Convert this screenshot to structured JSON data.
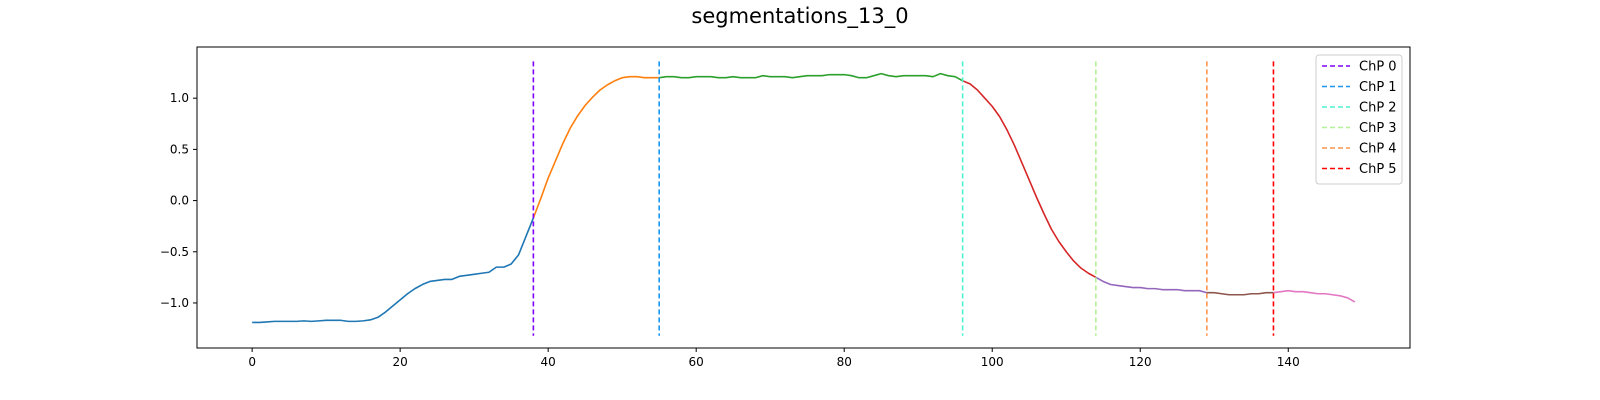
{
  "chart_data": {
    "type": "line",
    "title": "segmentations_13_0",
    "xlabel": "",
    "ylabel": "",
    "xlim": [
      -7.45,
      156.45
    ],
    "ylim": [
      -1.44,
      1.5
    ],
    "x_ticks": [
      0,
      20,
      40,
      60,
      80,
      100,
      120,
      140
    ],
    "y_ticks": [
      -1.0,
      -0.5,
      0.0,
      0.5,
      1.0
    ],
    "x_tick_labels": [
      "0",
      "20",
      "40",
      "60",
      "80",
      "100",
      "120",
      "140"
    ],
    "y_tick_labels": [
      "−1.0",
      "−0.5",
      "0.0",
      "0.5",
      "1.0"
    ],
    "grid": false,
    "legend_position": "top-right",
    "segment_colors": [
      "#1f77b4",
      "#ff7f0e",
      "#2ca02c",
      "#d62728",
      "#9467bd",
      "#8c564b",
      "#e377c2"
    ],
    "segment_bounds": [
      0,
      38,
      55,
      96,
      114,
      129,
      138,
      149
    ],
    "y": [
      -1.19,
      -1.19,
      -1.185,
      -1.18,
      -1.18,
      -1.18,
      -1.18,
      -1.175,
      -1.18,
      -1.175,
      -1.17,
      -1.17,
      -1.17,
      -1.18,
      -1.18,
      -1.175,
      -1.165,
      -1.14,
      -1.09,
      -1.03,
      -0.97,
      -0.91,
      -0.86,
      -0.82,
      -0.79,
      -0.78,
      -0.77,
      -0.77,
      -0.74,
      -0.73,
      -0.72,
      -0.71,
      -0.7,
      -0.65,
      -0.65,
      -0.62,
      -0.53,
      -0.35,
      -0.17,
      0.02,
      0.22,
      0.39,
      0.56,
      0.71,
      0.83,
      0.93,
      1.01,
      1.08,
      1.13,
      1.17,
      1.2,
      1.21,
      1.21,
      1.2,
      1.2,
      1.2,
      1.21,
      1.21,
      1.2,
      1.2,
      1.21,
      1.21,
      1.21,
      1.2,
      1.2,
      1.21,
      1.2,
      1.2,
      1.2,
      1.22,
      1.21,
      1.21,
      1.21,
      1.2,
      1.21,
      1.22,
      1.22,
      1.22,
      1.23,
      1.23,
      1.23,
      1.22,
      1.2,
      1.2,
      1.22,
      1.24,
      1.22,
      1.21,
      1.22,
      1.22,
      1.22,
      1.22,
      1.21,
      1.24,
      1.22,
      1.21,
      1.17,
      1.14,
      1.08,
      1.0,
      0.92,
      0.82,
      0.69,
      0.54,
      0.37,
      0.2,
      0.03,
      -0.13,
      -0.28,
      -0.4,
      -0.5,
      -0.59,
      -0.66,
      -0.71,
      -0.75,
      -0.79,
      -0.82,
      -0.83,
      -0.84,
      -0.85,
      -0.85,
      -0.86,
      -0.86,
      -0.87,
      -0.87,
      -0.87,
      -0.88,
      -0.88,
      -0.88,
      -0.9,
      -0.9,
      -0.91,
      -0.92,
      -0.92,
      -0.92,
      -0.91,
      -0.91,
      -0.9,
      -0.9,
      -0.89,
      -0.88,
      -0.89,
      -0.89,
      -0.9,
      -0.91,
      -0.91,
      -0.92,
      -0.93,
      -0.95,
      -0.99,
      -1.04
    ],
    "changepoints": [
      {
        "name": "ChP 0",
        "x": 38,
        "color": "#8000ff"
      },
      {
        "name": "ChP 1",
        "x": 55,
        "color": "#1996f3"
      },
      {
        "name": "ChP 2",
        "x": 96,
        "color": "#4df3ce"
      },
      {
        "name": "ChP 3",
        "x": 114,
        "color": "#b2f396"
      },
      {
        "name": "ChP 4",
        "x": 129,
        "color": "#ff964f"
      },
      {
        "name": "ChP 5",
        "x": 138,
        "color": "#ff0000"
      }
    ]
  }
}
